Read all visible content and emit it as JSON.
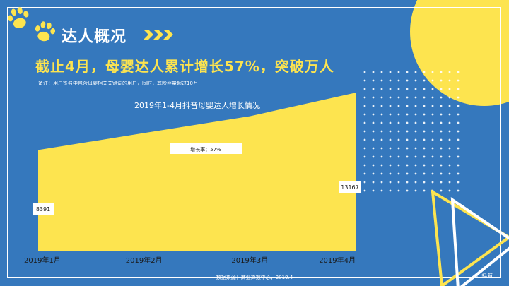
{
  "section_title": "达人概况",
  "headline": "截止4月，母婴达人累计增长57%，突破万人",
  "note": "备注：用户签名中包含母婴相关关键词的用户，同时，其粉丝量超过10万",
  "source": "数据来源：商业算数中心，2019.4",
  "logo": {
    "icon": "douyin-note-icon",
    "label": "抖音"
  },
  "colors": {
    "background": "#3578bd",
    "accent": "#fde44f",
    "line": "#ffffff"
  },
  "chart_data": {
    "type": "area",
    "title": "2019年1-4月抖音母婴达人增长情况",
    "categories": [
      "2019年1月",
      "2019年2月",
      "2019年3月",
      "2019年4月"
    ],
    "values": [
      8391,
      9800,
      11200,
      13167
    ],
    "point_labels": [
      "8391",
      "",
      "",
      "13167"
    ],
    "annotation": "增长率：57%",
    "ylim": [
      0,
      15000
    ],
    "grid": false,
    "legend": "none"
  }
}
